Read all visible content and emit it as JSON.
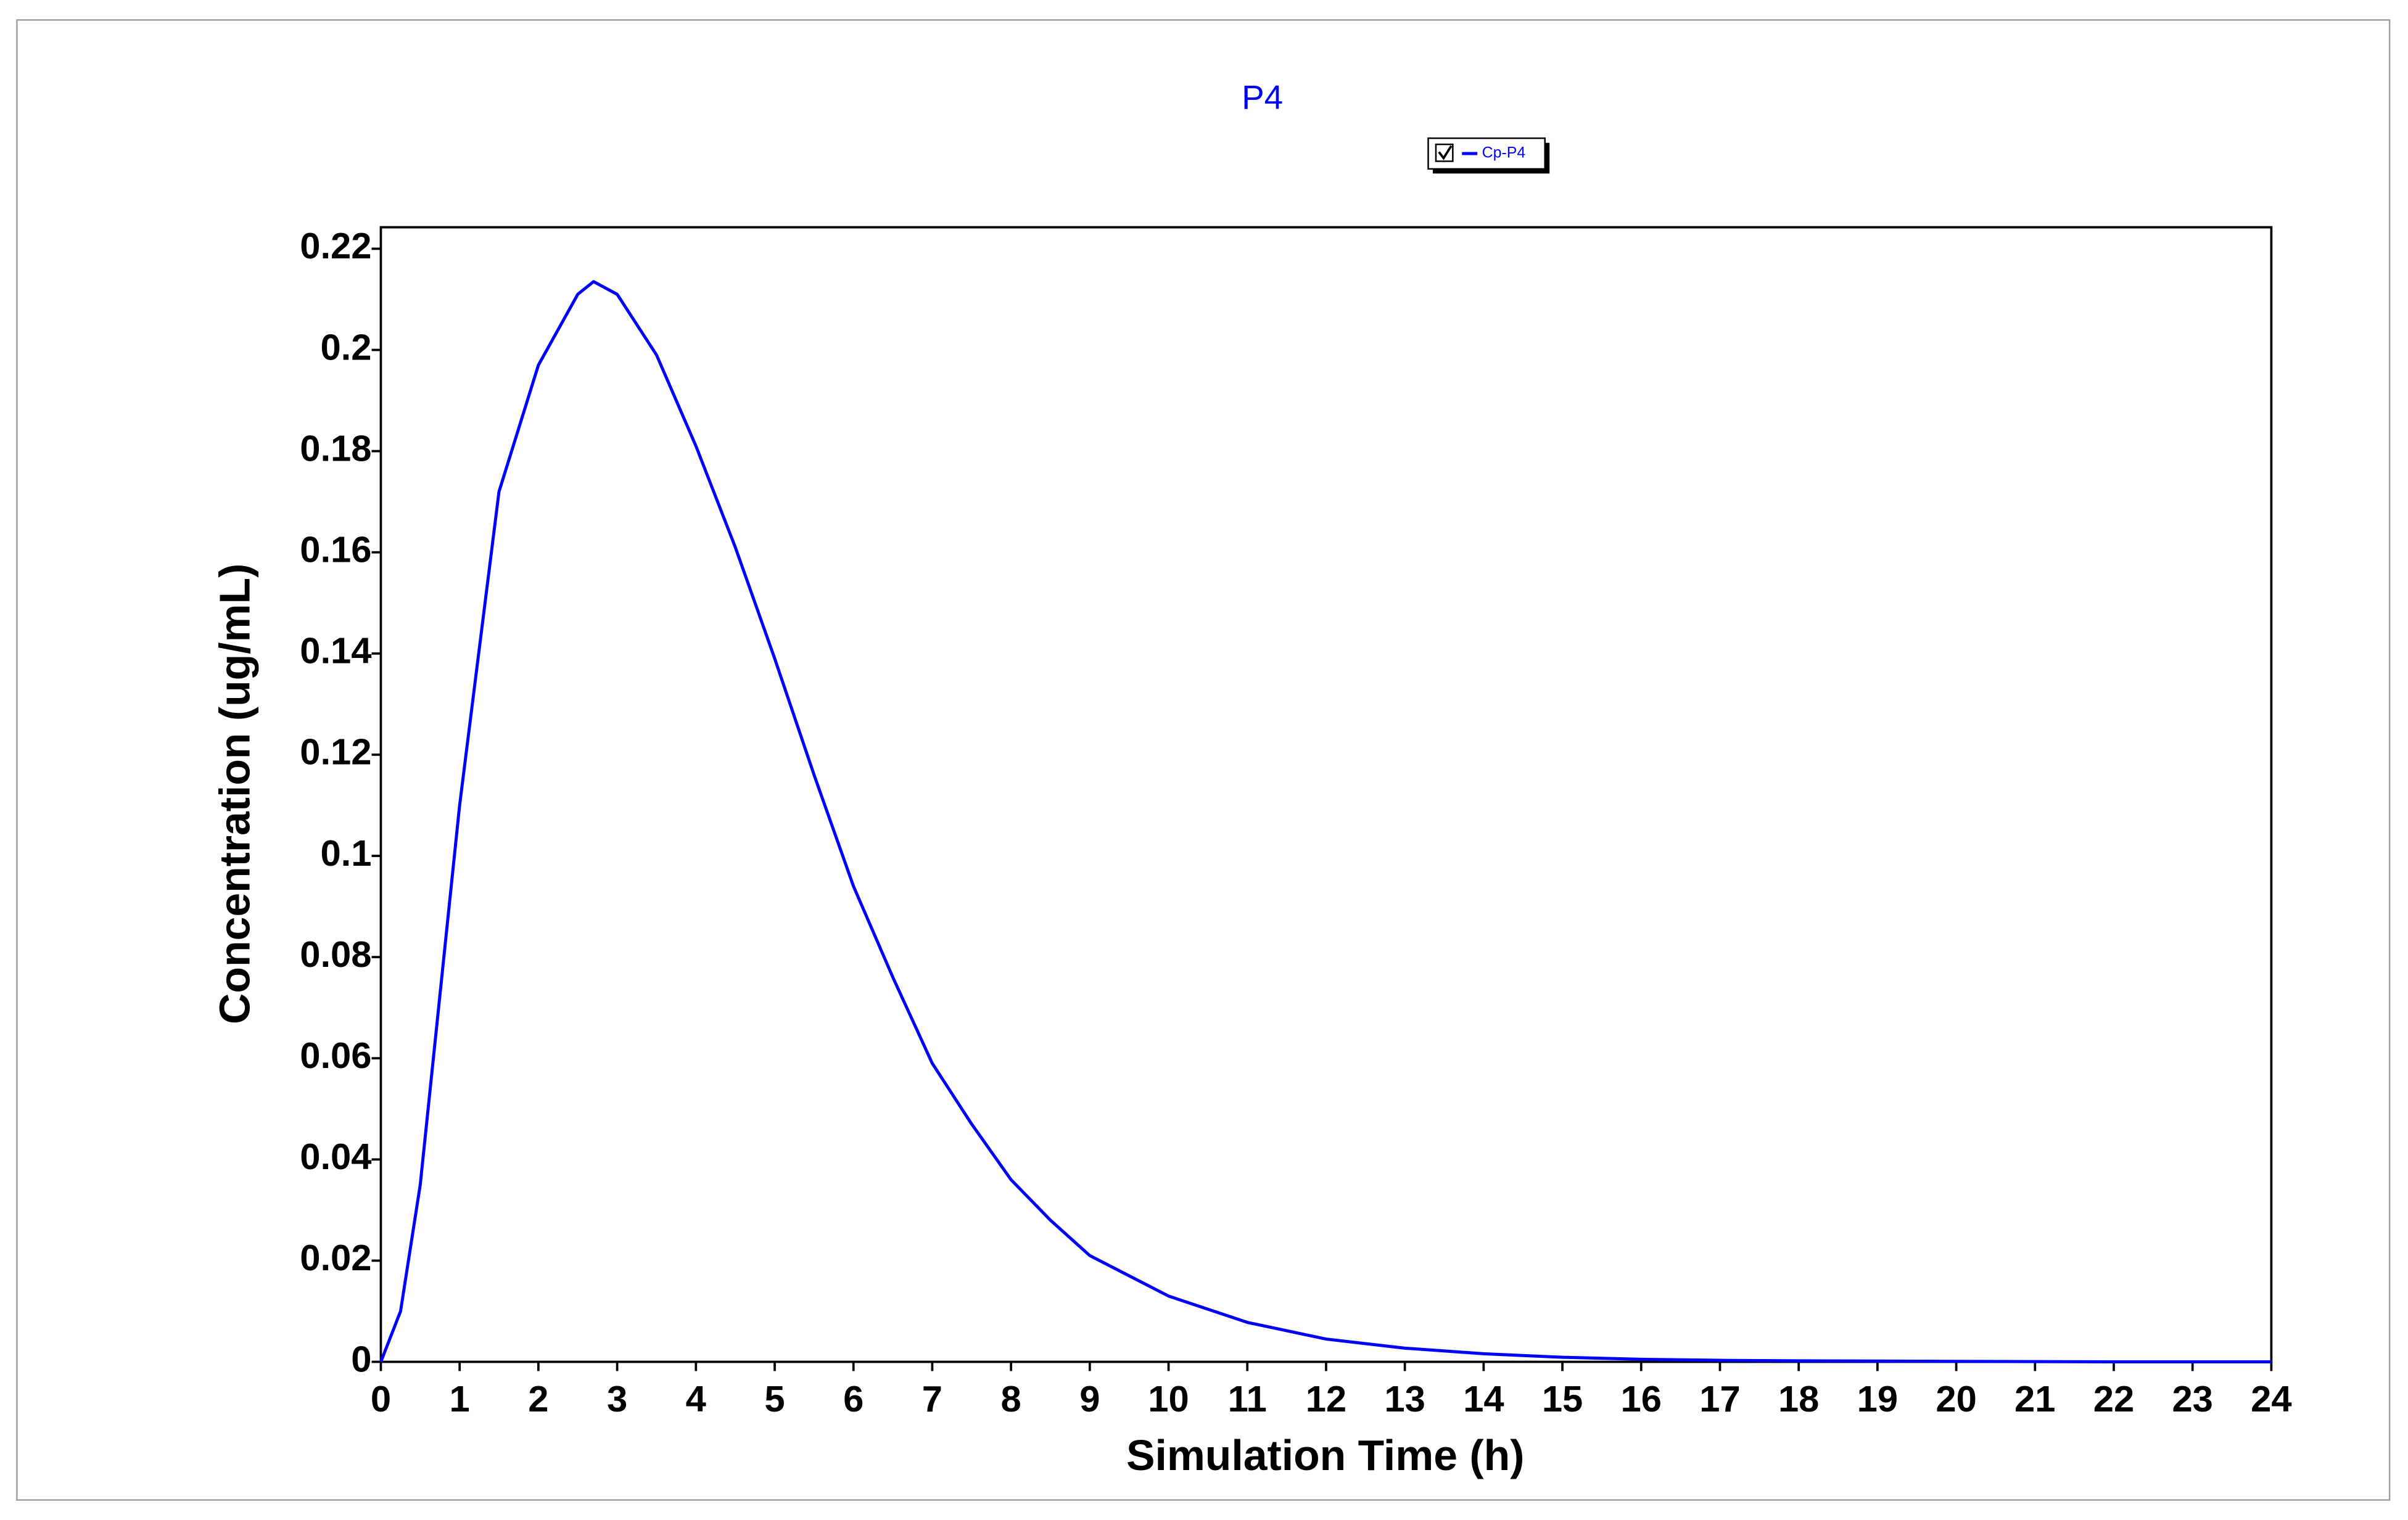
{
  "chart_data": {
    "type": "line",
    "title": "P4",
    "x_label": "Simulation Time (h)",
    "y_label": "Concentration (ug/mL)",
    "x": [
      0,
      0.25,
      0.5,
      1,
      1.5,
      2,
      2.5,
      2.7,
      3,
      3.5,
      4,
      4.5,
      5,
      5.5,
      6,
      6.5,
      7,
      7.5,
      8,
      8.5,
      9,
      9.5,
      10,
      11,
      12,
      13,
      14,
      15,
      16,
      17,
      18,
      20,
      22,
      24
    ],
    "series": [
      {
        "name": "Cp-P4",
        "color": "#0000ff",
        "values": [
          0,
          0.01,
          0.035,
          0.11,
          0.172,
          0.197,
          0.211,
          0.2135,
          0.211,
          0.199,
          0.181,
          0.161,
          0.139,
          0.116,
          0.094,
          0.076,
          0.059,
          0.047,
          0.036,
          0.028,
          0.021,
          0.017,
          0.013,
          0.0078,
          0.0045,
          0.0027,
          0.0016,
          0.0009,
          0.0005,
          0.0003,
          0.0002,
          0.0001,
          0,
          0
        ]
      }
    ],
    "xlim": [
      0,
      24
    ],
    "xticks": [
      0,
      1,
      2,
      3,
      4,
      5,
      6,
      7,
      8,
      9,
      10,
      11,
      12,
      13,
      14,
      15,
      16,
      17,
      18,
      19,
      20,
      21,
      22,
      23,
      24
    ],
    "ylim": [
      0,
      0.22
    ],
    "yticks": [
      0,
      0.02,
      0.04,
      0.06,
      0.08,
      0.1,
      0.12,
      0.14,
      0.16,
      0.18,
      0.2,
      0.22
    ],
    "grid": false,
    "legend": "top"
  }
}
